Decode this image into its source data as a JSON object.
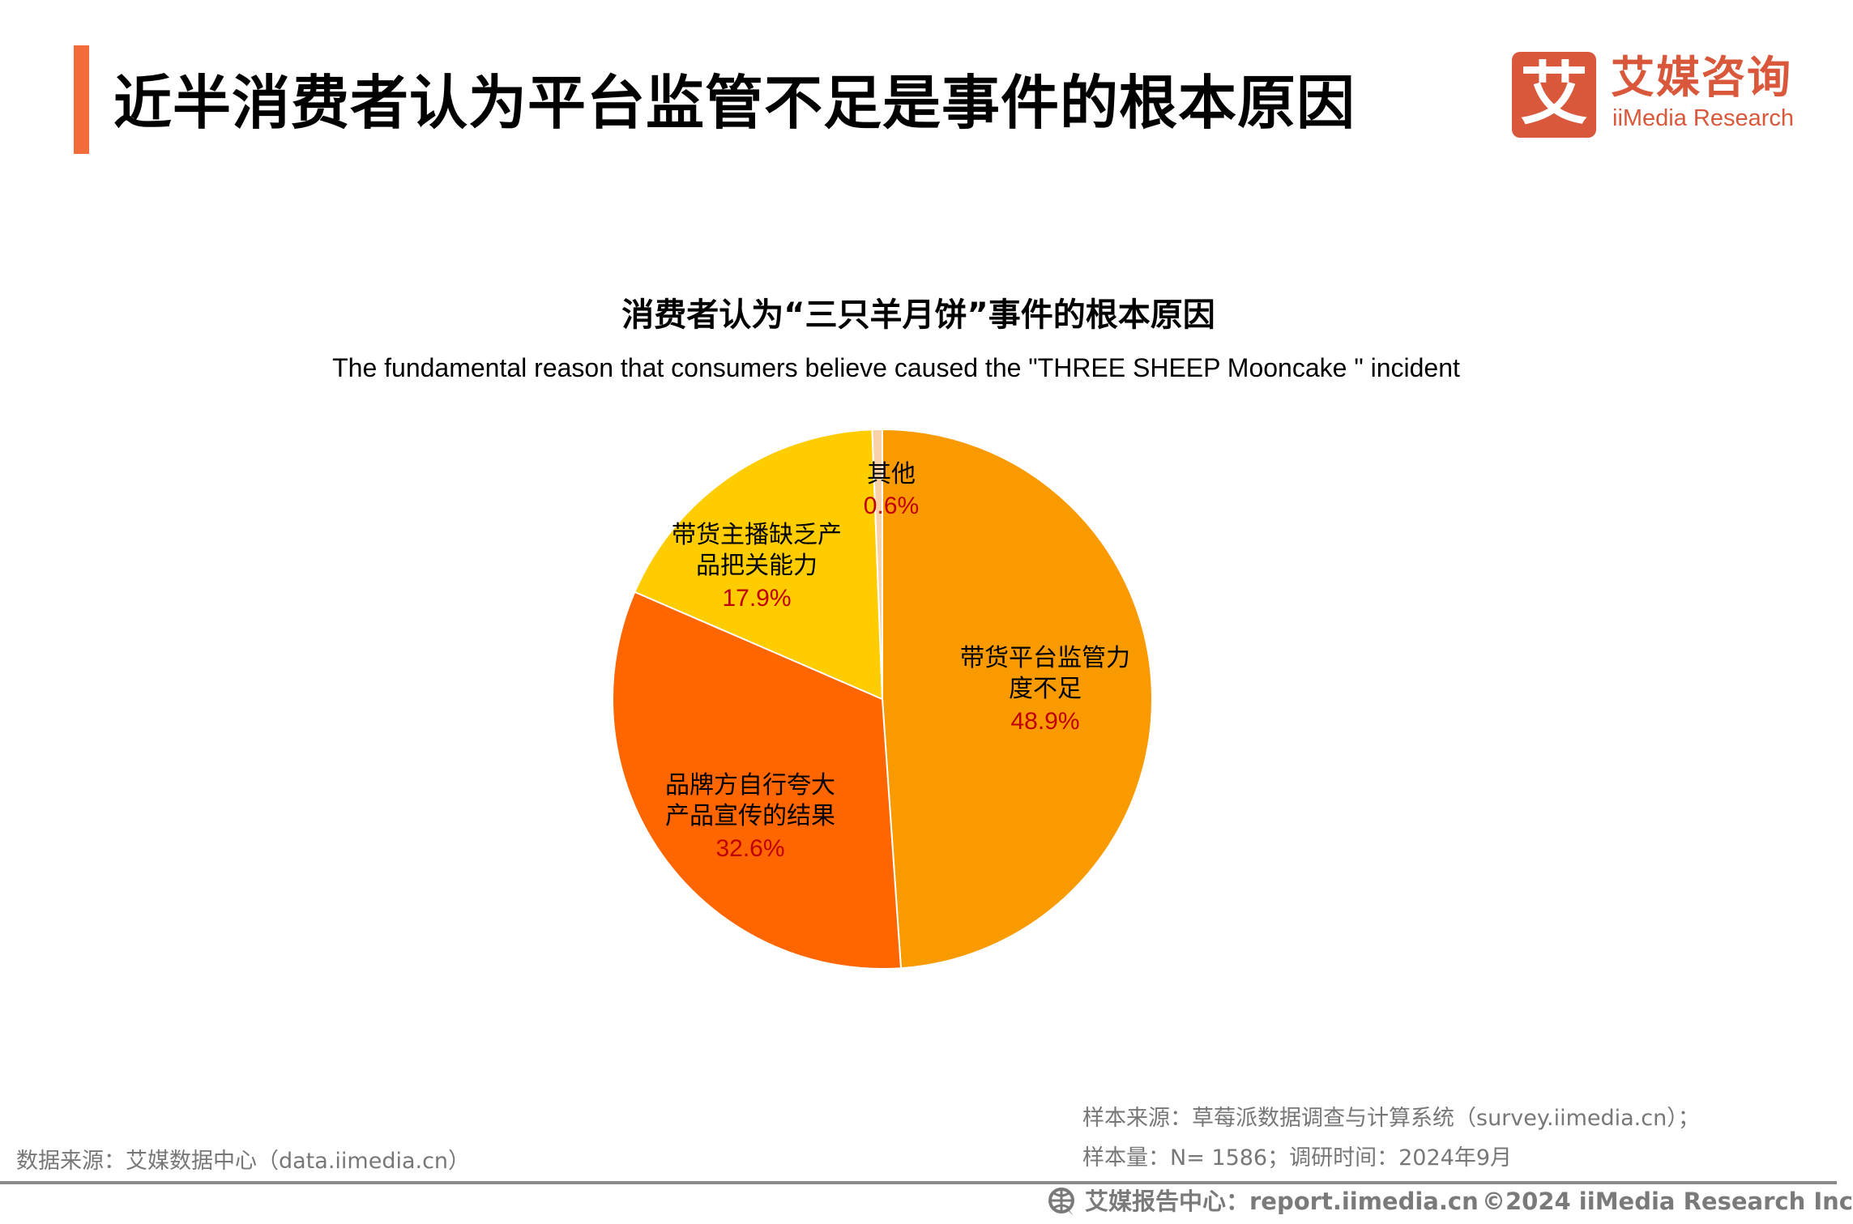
{
  "header": {
    "title": "近半消费者认为平台监管不足是事件的根本原因",
    "accent_color": "#F26B3A"
  },
  "logo": {
    "mark": "艾",
    "name_cn": "艾媒咨询",
    "name_en": "iiMedia Research",
    "color": "#D9573A"
  },
  "chart_data": {
    "type": "pie",
    "title": "消费者认为“三只羊月饼”事件的根本原因",
    "subtitle": "The fundamental reason that consumers believe caused the \"THREE SHEEP Mooncake \" incident",
    "start": "top",
    "direction": "clockwise",
    "slices": [
      {
        "label": "带货平台监管力\n度不足",
        "value": 48.9,
        "value_label": "48.9%",
        "color": "#F99B00"
      },
      {
        "label": "品牌方自行夸大\n产品宣传的结果",
        "value": 32.6,
        "value_label": "32.6%",
        "color": "#FF6600"
      },
      {
        "label": "带货主播缺乏产\n品把关能力",
        "value": 17.9,
        "value_label": "17.9%",
        "color": "#FFCC00"
      },
      {
        "label": "其他",
        "value": 0.6,
        "value_label": "0.6%",
        "color": "#F9D2A8"
      }
    ]
  },
  "footer": {
    "data_source": "数据来源：艾媒数据中心（data.iimedia.cn）",
    "sample_source": "样本来源：草莓派数据调查与计算系统（survey.iimedia.cn）；",
    "sample_info": "样本量：N= 1586；调研时间：2024年9月",
    "report_center": "艾媒报告中心：report.iimedia.cn",
    "copyright": "©2024  iiMedia Research  Inc"
  }
}
